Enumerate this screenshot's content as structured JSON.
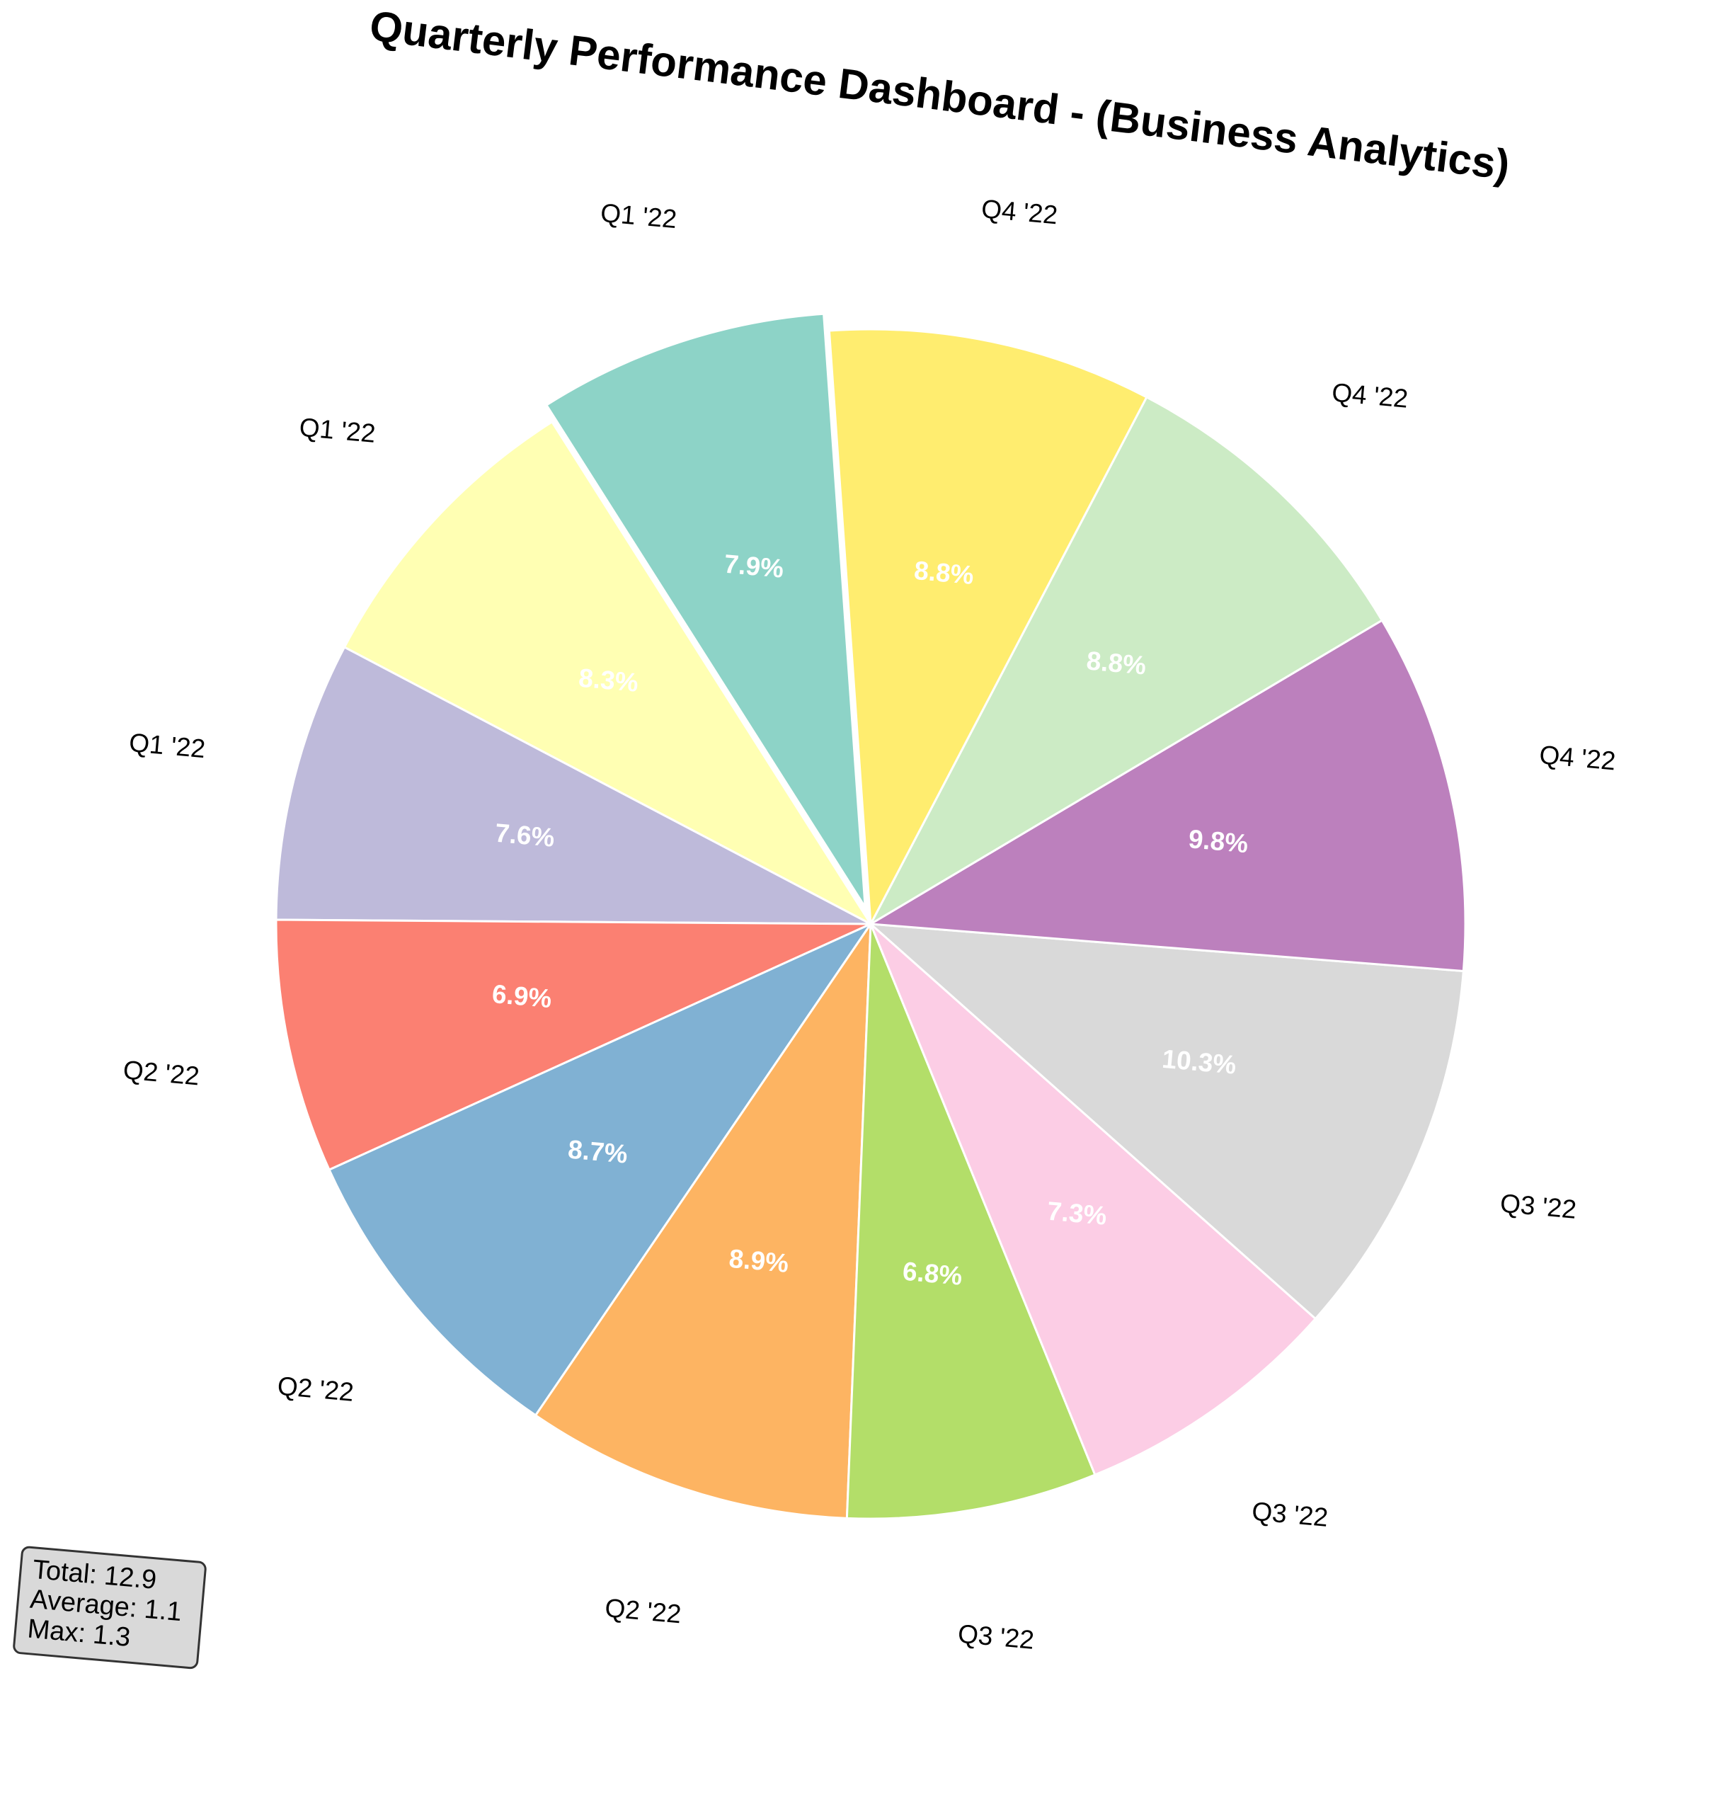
{
  "chart_data": {
    "type": "pie",
    "title": "Quarterly Performance Dashboard - (Business Analytics)",
    "slices": [
      {
        "label": "Q1 '22",
        "percent": 7.9,
        "pct_label": "7.9%",
        "color": "#8dd3c7",
        "exploded": true
      },
      {
        "label": "Q1 '22",
        "percent": 8.3,
        "pct_label": "8.3%",
        "color": "#ffffb3",
        "exploded": false
      },
      {
        "label": "Q1 '22",
        "percent": 7.6,
        "pct_label": "7.6%",
        "color": "#bebada",
        "exploded": false
      },
      {
        "label": "Q2 '22",
        "percent": 6.9,
        "pct_label": "6.9%",
        "color": "#fb8072",
        "exploded": false
      },
      {
        "label": "Q2 '22",
        "percent": 8.7,
        "pct_label": "8.7%",
        "color": "#80b1d3",
        "exploded": false
      },
      {
        "label": "Q2 '22",
        "percent": 8.9,
        "pct_label": "8.9%",
        "color": "#fdb462",
        "exploded": false
      },
      {
        "label": "Q3 '22",
        "percent": 6.8,
        "pct_label": "6.8%",
        "color": "#b3de69",
        "exploded": false
      },
      {
        "label": "Q3 '22",
        "percent": 7.3,
        "pct_label": "7.3%",
        "color": "#fccde5",
        "exploded": false
      },
      {
        "label": "Q3 '22",
        "percent": 10.3,
        "pct_label": "10.3%",
        "color": "#d9d9d9",
        "exploded": false
      },
      {
        "label": "Q4 '22",
        "percent": 9.8,
        "pct_label": "9.8%",
        "color": "#bc80bd",
        "exploded": false
      },
      {
        "label": "Q4 '22",
        "percent": 8.8,
        "pct_label": "8.8%",
        "color": "#ccebc5",
        "exploded": false
      },
      {
        "label": "Q4 '22",
        "percent": 8.8,
        "pct_label": "8.8%",
        "color": "#ffed6f",
        "exploded": false
      }
    ],
    "direction": "counterclockwise",
    "stats": {
      "lines": [
        "Total: 12.9",
        "Average: 1.1",
        "Max: 1.3"
      ],
      "placement": "bottom-left"
    }
  }
}
